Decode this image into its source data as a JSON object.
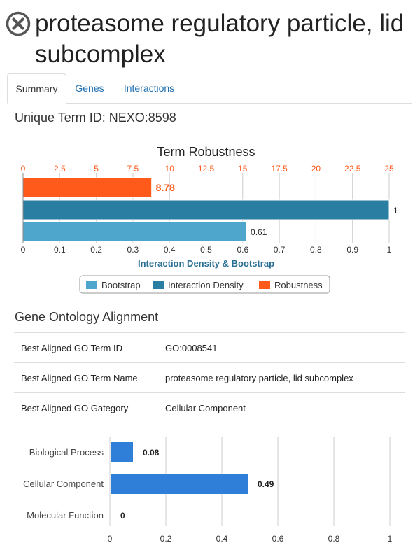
{
  "header": {
    "close_icon": "close-circle-icon",
    "title": "proteasome regulatory particle, lid subcomplex"
  },
  "tabs": [
    {
      "label": "Summary",
      "active": true
    },
    {
      "label": "Genes",
      "active": false
    },
    {
      "label": "Interactions",
      "active": false
    }
  ],
  "summary": {
    "unique_term_id": "Unique Term ID: NEXO:8598"
  },
  "colors": {
    "bootstrap": "#4fa6cd",
    "interaction_density": "#2a7ea1",
    "robustness": "#ff5a1a",
    "go_bar": "#2f7fd8",
    "link": "#1f6fb0"
  },
  "robustness_chart": {
    "title": "Term Robustness",
    "top_axis": {
      "ticks": [
        "0",
        "2.5",
        "5",
        "7.5",
        "10",
        "12.5",
        "15",
        "17.5",
        "20",
        "22.5",
        "25"
      ],
      "range": [
        0,
        25
      ]
    },
    "bottom_axis": {
      "ticks": [
        "0",
        "0.1",
        "0.2",
        "0.3",
        "0.4",
        "0.5",
        "0.6",
        "0.7",
        "0.8",
        "0.9",
        "1"
      ],
      "range": [
        0,
        1
      ],
      "label": "Interaction Density & Bootstrap"
    },
    "bars": [
      {
        "series": "Robustness",
        "value": 8.78,
        "label": "8.78",
        "axis": "top"
      },
      {
        "series": "Interaction Density",
        "value": 1,
        "label": "1",
        "axis": "bottom"
      },
      {
        "series": "Bootstrap",
        "value": 0.61,
        "label": "0.61",
        "axis": "bottom"
      }
    ],
    "legend": [
      "Bootstrap",
      "Interaction Density",
      "Robustness"
    ]
  },
  "go_alignment": {
    "title": "Gene Ontology Alignment",
    "rows": [
      {
        "key": "Best Aligned GO Term ID",
        "value": "GO:0008541"
      },
      {
        "key": "Best Aligned GO Term Name",
        "value": "proteasome regulatory particle, lid subcomplex"
      },
      {
        "key": "Best Aligned GO Gategory",
        "value": "Cellular Component"
      }
    ]
  },
  "chart_data": [
    {
      "type": "bar",
      "title": "Term Robustness",
      "orientation": "horizontal",
      "series": [
        {
          "name": "Robustness",
          "values": [
            8.78
          ]
        },
        {
          "name": "Interaction Density",
          "values": [
            1
          ]
        },
        {
          "name": "Bootstrap",
          "values": [
            0.61
          ]
        }
      ],
      "xlabel": "Interaction Density & Bootstrap",
      "xlim_top": [
        0,
        25
      ],
      "xlim_bottom": [
        0,
        1
      ],
      "legend": "bottom-center",
      "grid": true
    },
    {
      "type": "bar",
      "orientation": "horizontal",
      "categories": [
        "Biological Process",
        "Cellular Component",
        "Molecular Function"
      ],
      "values": [
        0.08,
        0.49,
        0
      ],
      "labels": [
        "0.08",
        "0.49",
        "0"
      ],
      "xticks": [
        "0",
        "0.2",
        "0.4",
        "0.6",
        "0.8",
        "1"
      ],
      "xlim": [
        0,
        1
      ],
      "grid": true
    }
  ]
}
